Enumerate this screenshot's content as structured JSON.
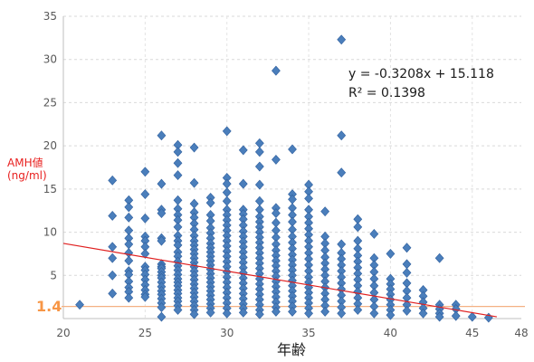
{
  "chart_data": {
    "type": "scatter",
    "xlabel": "年齢",
    "ylabel_lines": [
      "AMH値",
      "(ng/ml)"
    ],
    "xlim": [
      20,
      48
    ],
    "ylim": [
      0,
      35
    ],
    "xticks": [
      20,
      25,
      30,
      35,
      40,
      45,
      48
    ],
    "yticks": [
      5,
      10,
      15,
      20,
      25,
      30,
      35
    ],
    "grid": true,
    "marker_color": "#4a7ebb",
    "marker_stroke": "#2f5f9e",
    "label_color": "#e8201f",
    "trendline": {
      "slope": -0.3208,
      "intercept": 15.118,
      "x_range": [
        20,
        46.5
      ],
      "equation": "y = -0.3208x + 15.118",
      "r2_label": "R² = 0.1398",
      "color": "#e02020"
    },
    "reference_line": {
      "y": 1.4,
      "label": "1.4",
      "color": "#f4b183",
      "label_color": "#f79646"
    },
    "data": [
      {
        "x": 21,
        "y": [
          1.6
        ]
      },
      {
        "x": 23,
        "y": [
          16.0,
          11.9,
          8.3,
          7.0,
          5.0,
          2.9
        ]
      },
      {
        "x": 24,
        "y": [
          13.7,
          12.9,
          11.7,
          10.2,
          9.3,
          8.6,
          7.6,
          6.7,
          5.5,
          5.1,
          4.3,
          3.6,
          3.1,
          2.4
        ]
      },
      {
        "x": 25,
        "y": [
          17.0,
          14.4,
          11.6,
          9.5,
          9.0,
          8.3,
          7.5,
          6.0,
          5.6,
          5.1,
          4.5,
          3.9,
          3.3,
          2.8,
          2.5
        ]
      },
      {
        "x": 26,
        "y": [
          21.2,
          15.6,
          12.6,
          12.2,
          9.3,
          9.0,
          6.3,
          6.0,
          5.8,
          5.4,
          5.0,
          4.7,
          4.2,
          3.7,
          3.2,
          2.8,
          2.3,
          1.8,
          1.3,
          0.2
        ]
      },
      {
        "x": 27,
        "y": [
          20.1,
          19.3,
          18.0,
          16.6,
          13.7,
          12.7,
          12.0,
          11.4,
          10.6,
          9.6,
          9.0,
          8.5,
          7.7,
          7.2,
          6.6,
          6.1,
          5.6,
          5.1,
          4.6,
          4.2,
          3.8,
          3.3,
          2.9,
          2.4,
          2.0,
          1.5,
          1.0
        ]
      },
      {
        "x": 28,
        "y": [
          19.8,
          15.7,
          13.3,
          12.3,
          11.7,
          11.0,
          10.3,
          9.6,
          9.0,
          8.5,
          8.0,
          7.5,
          7.0,
          6.5,
          6.0,
          5.5,
          5.0,
          4.5,
          4.0,
          3.5,
          3.0,
          2.5,
          2.0,
          1.5,
          1.0,
          0.5
        ]
      },
      {
        "x": 29,
        "y": [
          14.0,
          13.4,
          12.0,
          11.3,
          10.5,
          9.9,
          9.3,
          8.7,
          8.2,
          7.7,
          7.2,
          6.7,
          6.2,
          5.7,
          5.2,
          4.7,
          4.2,
          3.7,
          3.2,
          2.7,
          2.2,
          1.7,
          1.2,
          0.7
        ]
      },
      {
        "x": 30,
        "y": [
          21.7,
          16.3,
          15.6,
          14.6,
          13.6,
          12.6,
          12.0,
          11.4,
          10.8,
          10.2,
          9.6,
          9.0,
          8.4,
          7.8,
          7.2,
          6.6,
          6.0,
          5.4,
          4.8,
          4.2,
          3.6,
          3.0,
          2.4,
          1.8,
          1.2,
          0.6
        ]
      },
      {
        "x": 31,
        "y": [
          19.5,
          15.6,
          12.6,
          12.1,
          11.5,
          10.8,
          10.1,
          9.5,
          8.9,
          8.3,
          7.7,
          7.1,
          6.5,
          5.9,
          5.3,
          4.7,
          4.1,
          3.5,
          2.9,
          2.3,
          1.7,
          1.2,
          0.7
        ]
      },
      {
        "x": 32,
        "y": [
          20.3,
          19.3,
          17.6,
          15.5,
          13.6,
          12.6,
          11.8,
          11.2,
          10.6,
          10.0,
          9.4,
          8.8,
          8.2,
          7.6,
          7.0,
          6.4,
          5.8,
          5.2,
          4.6,
          4.0,
          3.4,
          2.8,
          2.2,
          1.6,
          1.0,
          0.5
        ]
      },
      {
        "x": 33,
        "y": [
          28.7,
          18.4,
          12.8,
          12.2,
          11.1,
          10.2,
          9.4,
          8.6,
          7.9,
          7.3,
          6.7,
          6.1,
          5.5,
          4.9,
          4.3,
          3.7,
          3.1,
          2.5,
          1.9,
          1.3,
          0.8
        ]
      },
      {
        "x": 34,
        "y": [
          19.6,
          14.4,
          13.8,
          12.8,
          12.0,
          11.2,
          10.3,
          9.5,
          8.8,
          8.1,
          7.4,
          6.8,
          6.2,
          5.6,
          5.0,
          4.4,
          3.8,
          3.2,
          2.6,
          2.0,
          1.4,
          0.8
        ]
      },
      {
        "x": 35,
        "y": [
          15.5,
          14.7,
          13.9,
          12.6,
          11.8,
          11.1,
          10.4,
          9.7,
          9.0,
          8.3,
          7.6,
          6.9,
          6.2,
          5.5,
          4.8,
          4.2,
          3.6,
          3.0,
          2.4,
          1.8,
          1.2,
          0.6
        ]
      },
      {
        "x": 36,
        "y": [
          12.4,
          9.5,
          8.7,
          7.9,
          7.1,
          6.4,
          5.7,
          5.0,
          4.3,
          3.6,
          2.9,
          2.2,
          1.5,
          0.8
        ]
      },
      {
        "x": 37,
        "y": [
          32.3,
          21.2,
          16.9,
          8.6,
          7.6,
          6.9,
          6.2,
          5.5,
          4.8,
          4.1,
          3.4,
          2.7,
          2.0,
          1.3,
          0.6
        ]
      },
      {
        "x": 38,
        "y": [
          11.5,
          10.6,
          9.0,
          8.1,
          7.3,
          6.6,
          5.9,
          5.2,
          4.5,
          3.8,
          3.1,
          2.4,
          1.7,
          1.0
        ]
      },
      {
        "x": 39,
        "y": [
          9.8,
          7.0,
          6.2,
          5.4,
          4.6,
          3.8,
          3.0,
          2.2,
          1.4,
          0.6
        ]
      },
      {
        "x": 40,
        "y": [
          7.5,
          4.6,
          4.0,
          3.4,
          2.8,
          2.2,
          1.6,
          1.0,
          0.4
        ]
      },
      {
        "x": 41,
        "y": [
          8.2,
          6.3,
          5.3,
          4.1,
          3.2,
          2.4,
          1.6,
          0.9
        ]
      },
      {
        "x": 42,
        "y": [
          3.3,
          2.6,
          1.9,
          1.2,
          0.6
        ]
      },
      {
        "x": 43,
        "y": [
          7.0,
          1.6,
          1.1,
          0.6,
          0.2
        ]
      },
      {
        "x": 44,
        "y": [
          1.6,
          1.1,
          0.3
        ]
      },
      {
        "x": 45,
        "y": [
          0.2
        ]
      },
      {
        "x": 46,
        "y": [
          0.1
        ]
      }
    ]
  }
}
